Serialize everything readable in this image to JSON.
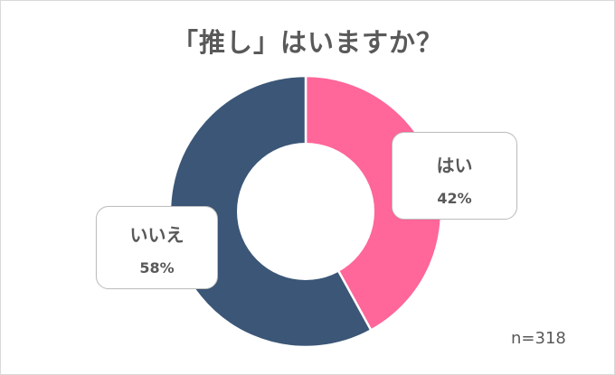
{
  "title": "「推し」はいますか？",
  "sample_size": "n=318",
  "callouts": {
    "yes": {
      "label": "はい",
      "percent": "42%"
    },
    "no": {
      "label": "いいえ",
      "percent": "58%"
    }
  },
  "colors": {
    "yes": "#ff6699",
    "no": "#3b5677",
    "text": "#595959",
    "border": "#bfbfbf"
  },
  "chart_data": {
    "type": "pie",
    "subtype": "donut",
    "title": "「推し」はいますか？",
    "categories": [
      "はい",
      "いいえ"
    ],
    "values": [
      42,
      58
    ],
    "unit": "%",
    "colors": [
      "#ff6699",
      "#3b5677"
    ],
    "annotations": [
      "n=318"
    ],
    "start_angle": "12 o'clock, clockwise",
    "legend": "callout labels beside slices"
  }
}
